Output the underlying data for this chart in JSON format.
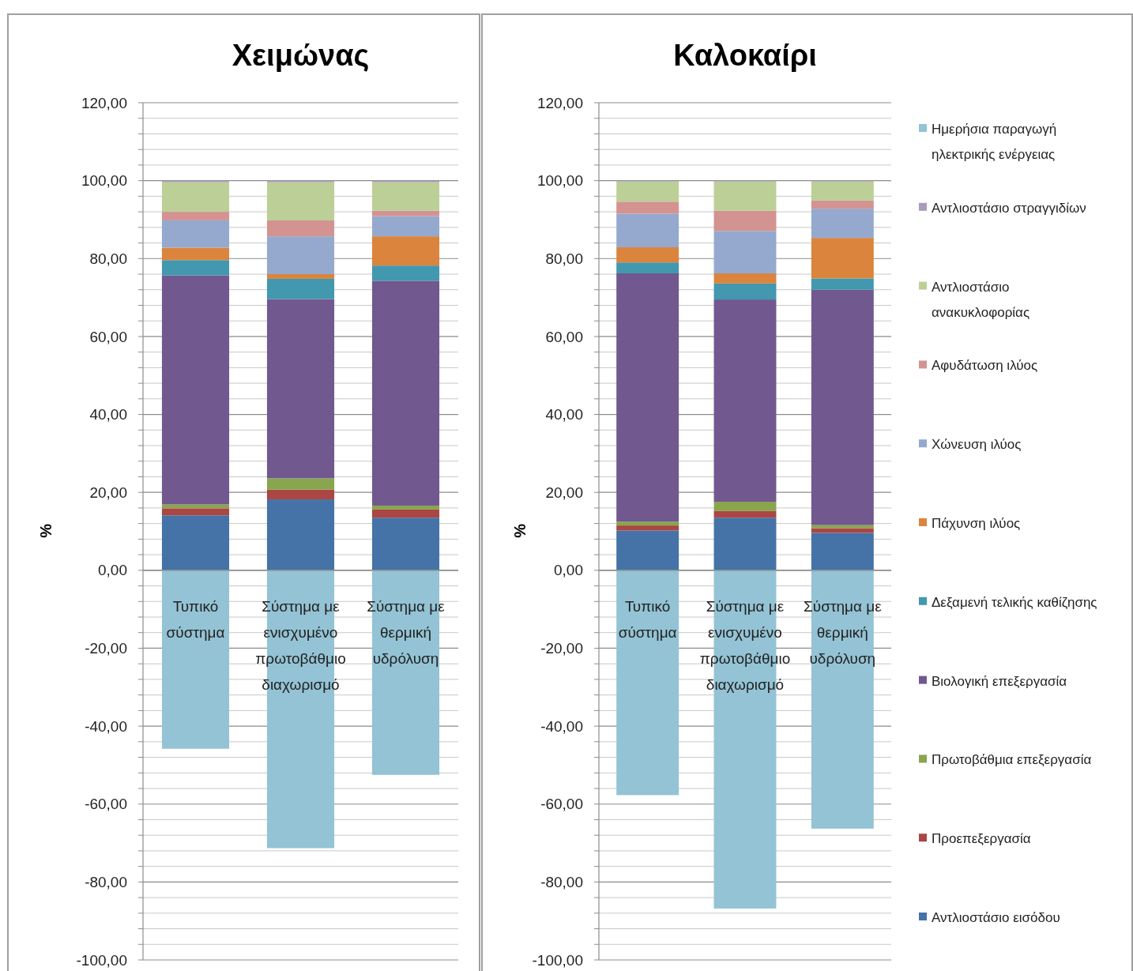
{
  "chart_data": [
    {
      "type": "bar",
      "title": "Χειμώνας",
      "ylabel": "%",
      "stacked": true,
      "grid": "y",
      "legend": false,
      "categories": [
        "Τυπικό σύστημα",
        "Σύστημα με ενισχυμένο πρωτοβάθμιο διαχωρισμό",
        "Σύστημα με θερμική υδρόλυση"
      ],
      "ylim": [
        -100,
        120
      ],
      "yticks": [
        {
          "value": -100,
          "label": "-100,00"
        },
        {
          "value": -96,
          "label": null
        },
        {
          "value": -92,
          "label": null
        },
        {
          "value": -88,
          "label": null
        },
        {
          "value": -84,
          "label": null
        },
        {
          "value": -80,
          "label": "-80,00"
        },
        {
          "value": -76,
          "label": null
        },
        {
          "value": -72,
          "label": null
        },
        {
          "value": -68,
          "label": null
        },
        {
          "value": -64,
          "label": null
        },
        {
          "value": -60,
          "label": "-60,00"
        },
        {
          "value": -56,
          "label": null
        },
        {
          "value": -52,
          "label": null
        },
        {
          "value": -48,
          "label": null
        },
        {
          "value": -44,
          "label": null
        },
        {
          "value": -40,
          "label": "-40,00"
        },
        {
          "value": -36,
          "label": null
        },
        {
          "value": -32,
          "label": null
        },
        {
          "value": -28,
          "label": null
        },
        {
          "value": -24,
          "label": null
        },
        {
          "value": -20,
          "label": "-20,00"
        },
        {
          "value": -16,
          "label": null
        },
        {
          "value": -12,
          "label": null
        },
        {
          "value": -8,
          "label": null
        },
        {
          "value": -4,
          "label": null
        },
        {
          "value": 0,
          "label": "0,00"
        },
        {
          "value": 4,
          "label": null
        },
        {
          "value": 8,
          "label": null
        },
        {
          "value": 12,
          "label": null
        },
        {
          "value": 16,
          "label": null
        },
        {
          "value": 20,
          "label": "20,00"
        },
        {
          "value": 24,
          "label": null
        },
        {
          "value": 28,
          "label": null
        },
        {
          "value": 32,
          "label": null
        },
        {
          "value": 36,
          "label": null
        },
        {
          "value": 40,
          "label": "40,00"
        },
        {
          "value": 44,
          "label": null
        },
        {
          "value": 48,
          "label": null
        },
        {
          "value": 52,
          "label": null
        },
        {
          "value": 56,
          "label": null
        },
        {
          "value": 60,
          "label": "60,00"
        },
        {
          "value": 64,
          "label": null
        },
        {
          "value": 68,
          "label": null
        },
        {
          "value": 72,
          "label": null
        },
        {
          "value": 76,
          "label": null
        },
        {
          "value": 80,
          "label": "80,00"
        },
        {
          "value": 84,
          "label": null
        },
        {
          "value": 88,
          "label": null
        },
        {
          "value": 92,
          "label": null
        },
        {
          "value": 96,
          "label": null
        },
        {
          "value": 100,
          "label": "100,00"
        },
        {
          "value": 104,
          "label": null
        },
        {
          "value": 108,
          "label": null
        },
        {
          "value": 112,
          "label": null
        },
        {
          "value": 116,
          "label": null
        },
        {
          "value": 120,
          "label": "120,00"
        }
      ],
      "series": [
        {
          "color": "#4572a7",
          "values": [
            14.1,
            18.2,
            13.5
          ]
        },
        {
          "color": "#aa4643",
          "values": [
            1.8,
            2.5,
            2.1
          ]
        },
        {
          "color": "#89a54e",
          "values": [
            1.0,
            2.9,
            1.0
          ]
        },
        {
          "color": "#71588f",
          "values": [
            58.8,
            46.0,
            57.7
          ]
        },
        {
          "color": "#4198af",
          "values": [
            3.9,
            5.2,
            3.9
          ]
        },
        {
          "color": "#db843d",
          "values": [
            3.2,
            1.2,
            7.5
          ]
        },
        {
          "color": "#95a9cf",
          "values": [
            7.0,
            9.7,
            5.2
          ]
        },
        {
          "color": "#d39391",
          "values": [
            2.2,
            4.1,
            1.4
          ]
        },
        {
          "color": "#bbcf97",
          "values": [
            7.6,
            9.8,
            7.3
          ]
        },
        {
          "color": "#a99bbd",
          "values": [
            0.4,
            0.4,
            0.4
          ]
        },
        {
          "color": "#93c3d4",
          "values": [
            -45.8,
            -71.3,
            -52.5
          ]
        }
      ]
    },
    {
      "type": "bar",
      "title": "Καλοκαίρι",
      "ylabel": "%",
      "stacked": true,
      "grid": "y",
      "legend": "right",
      "categories": [
        "Τυπικό σύστημα",
        "Σύστημα με ενισχυμένο πρωτοβάθμιο διαχωρισμό",
        "Σύστημα με θερμική υδρόλυση"
      ],
      "ylim": [
        -100,
        120
      ],
      "yticks": [
        {
          "value": -100,
          "label": "-100,00"
        },
        {
          "value": -96,
          "label": null
        },
        {
          "value": -92,
          "label": null
        },
        {
          "value": -88,
          "label": null
        },
        {
          "value": -84,
          "label": null
        },
        {
          "value": -80,
          "label": "-80,00"
        },
        {
          "value": -76,
          "label": null
        },
        {
          "value": -72,
          "label": null
        },
        {
          "value": -68,
          "label": null
        },
        {
          "value": -64,
          "label": null
        },
        {
          "value": -60,
          "label": "-60,00"
        },
        {
          "value": -56,
          "label": null
        },
        {
          "value": -52,
          "label": null
        },
        {
          "value": -48,
          "label": null
        },
        {
          "value": -44,
          "label": null
        },
        {
          "value": -40,
          "label": "-40,00"
        },
        {
          "value": -36,
          "label": null
        },
        {
          "value": -32,
          "label": null
        },
        {
          "value": -28,
          "label": null
        },
        {
          "value": -24,
          "label": null
        },
        {
          "value": -20,
          "label": "-20,00"
        },
        {
          "value": -16,
          "label": null
        },
        {
          "value": -12,
          "label": null
        },
        {
          "value": -8,
          "label": null
        },
        {
          "value": -4,
          "label": null
        },
        {
          "value": 0,
          "label": "0,00"
        },
        {
          "value": 4,
          "label": null
        },
        {
          "value": 8,
          "label": null
        },
        {
          "value": 12,
          "label": null
        },
        {
          "value": 16,
          "label": null
        },
        {
          "value": 20,
          "label": "20,00"
        },
        {
          "value": 24,
          "label": null
        },
        {
          "value": 28,
          "label": null
        },
        {
          "value": 32,
          "label": null
        },
        {
          "value": 36,
          "label": null
        },
        {
          "value": 40,
          "label": "40,00"
        },
        {
          "value": 44,
          "label": null
        },
        {
          "value": 48,
          "label": null
        },
        {
          "value": 52,
          "label": null
        },
        {
          "value": 56,
          "label": null
        },
        {
          "value": 60,
          "label": "60,00"
        },
        {
          "value": 64,
          "label": null
        },
        {
          "value": 68,
          "label": null
        },
        {
          "value": 72,
          "label": null
        },
        {
          "value": 76,
          "label": null
        },
        {
          "value": 80,
          "label": "80,00"
        },
        {
          "value": 84,
          "label": null
        },
        {
          "value": 88,
          "label": null
        },
        {
          "value": 92,
          "label": null
        },
        {
          "value": 96,
          "label": null
        },
        {
          "value": 100,
          "label": "100,00"
        },
        {
          "value": 104,
          "label": null
        },
        {
          "value": 108,
          "label": null
        },
        {
          "value": 112,
          "label": null
        },
        {
          "value": 116,
          "label": null
        },
        {
          "value": 120,
          "label": "120,00"
        }
      ],
      "series": [
        {
          "name": "Αντλιοστάσιο εισόδου",
          "color": "#4572a7",
          "values": [
            10.2,
            13.5,
            9.6
          ]
        },
        {
          "name": "Προεπεξεργασία",
          "color": "#aa4643",
          "values": [
            1.3,
            1.7,
            1.2
          ]
        },
        {
          "name": "Πρωτοβάθμια επεξεργασία",
          "color": "#89a54e",
          "values": [
            1.0,
            2.4,
            0.8
          ]
        },
        {
          "name": "Βιολογική επεξεργασία",
          "color": "#71588f",
          "values": [
            63.7,
            51.9,
            60.4
          ]
        },
        {
          "name": "Δεξαμενή τελικής καθίζησης",
          "color": "#4198af",
          "values": [
            2.8,
            4.1,
            2.9
          ]
        },
        {
          "name": "Πάχυνση ιλύος",
          "color": "#db843d",
          "values": [
            3.9,
            2.6,
            10.4
          ]
        },
        {
          "name": "Χώνευση ιλύος",
          "color": "#95a9cf",
          "values": [
            8.6,
            10.9,
            7.5
          ]
        },
        {
          "name": "Αφυδάτωση ιλύος",
          "color": "#d39391",
          "values": [
            3.1,
            5.2,
            2.1
          ]
        },
        {
          "name": "Αντλιοστάσιο ανακυκλοφορίας",
          "color": "#bbcf97",
          "values": [
            5.2,
            7.5,
            4.9
          ]
        },
        {
          "name": "Αντλιοστάσιο στραγγιδίων",
          "color": "#a99bbd",
          "values": [
            0.2,
            0.2,
            0.2
          ]
        },
        {
          "name": "Ημερήσια παραγωγή ηλεκτρικής ενέργειας",
          "color": "#93c3d4",
          "values": [
            -57.7,
            -86.8,
            -66.3
          ]
        }
      ]
    }
  ]
}
